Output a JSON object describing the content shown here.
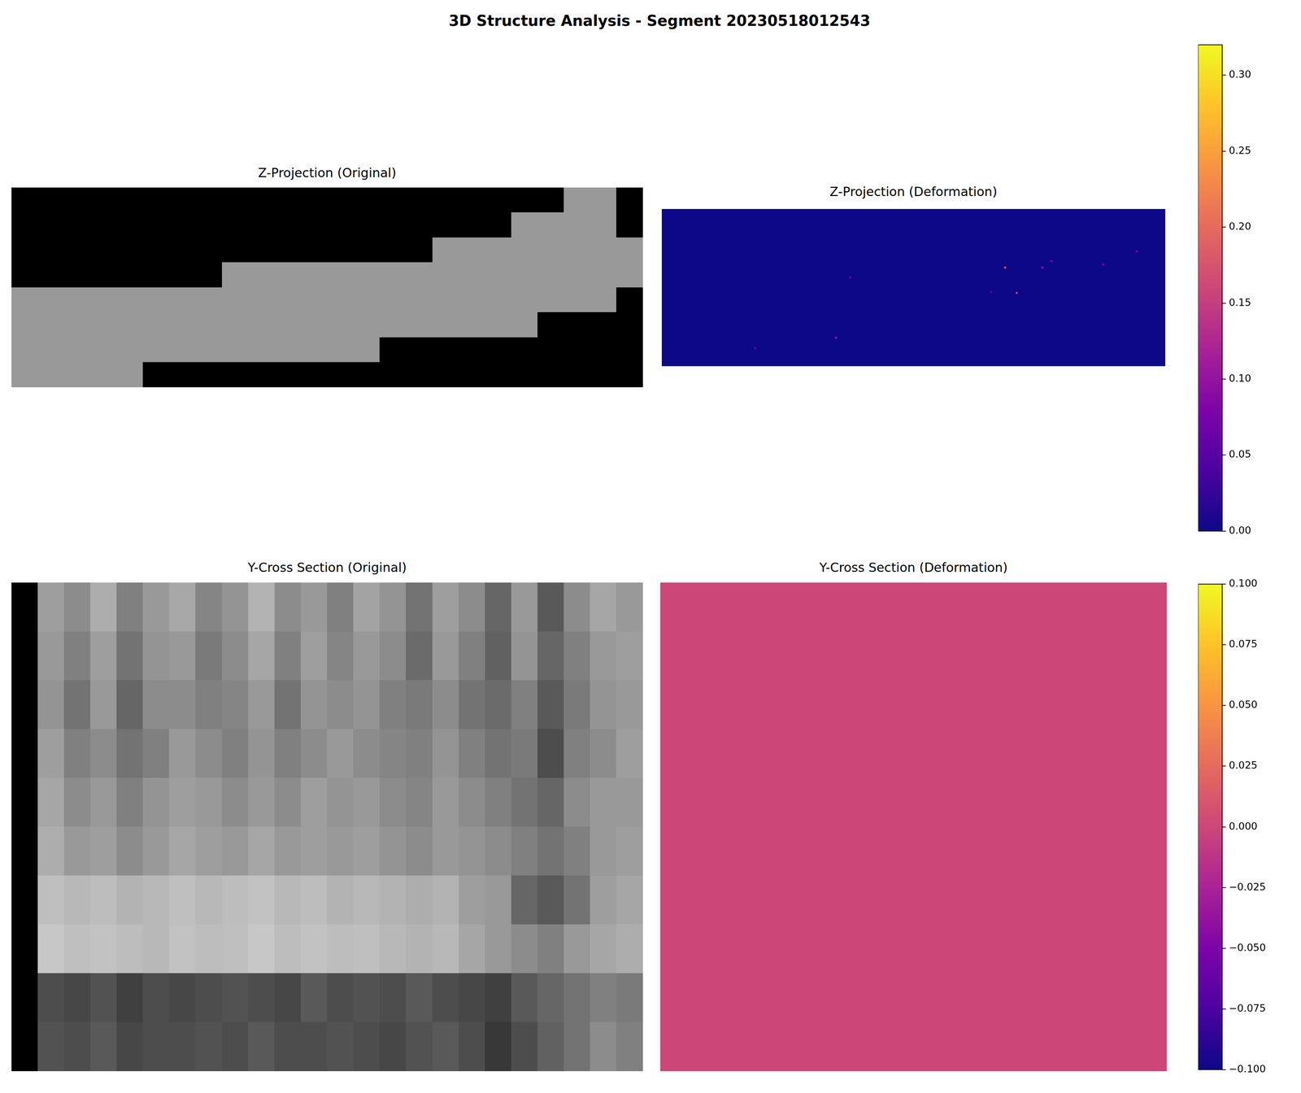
{
  "title": "3D Structure Analysis - Segment 20230518012543",
  "chart_data": [
    {
      "type": "heatmap",
      "title": "Z-Projection (Original)",
      "color": "gray",
      "tick_labels": false,
      "cells": [
        [
          0,
          0,
          0,
          0,
          0,
          0,
          0,
          0,
          0,
          0,
          0,
          0,
          0,
          0,
          0,
          0,
          0,
          0,
          0,
          0,
          0,
          0.6,
          0.6,
          0
        ],
        [
          0,
          0,
          0,
          0,
          0,
          0,
          0,
          0,
          0,
          0,
          0,
          0,
          0,
          0,
          0,
          0,
          0,
          0,
          0,
          0.6,
          0.6,
          0.6,
          0.6,
          0
        ],
        [
          0,
          0,
          0,
          0,
          0,
          0,
          0,
          0,
          0,
          0,
          0,
          0,
          0,
          0,
          0,
          0,
          0.6,
          0.6,
          0.6,
          0.6,
          0.6,
          0.6,
          0.6,
          0.6
        ],
        [
          0,
          0,
          0,
          0,
          0,
          0,
          0,
          0,
          0.6,
          0.6,
          0.6,
          0.6,
          0.6,
          0.6,
          0.6,
          0.6,
          0.6,
          0.6,
          0.6,
          0.6,
          0.6,
          0.6,
          0.6,
          0.6
        ],
        [
          0.6,
          0.6,
          0.6,
          0.6,
          0.6,
          0.6,
          0.6,
          0.6,
          0.6,
          0.6,
          0.6,
          0.6,
          0.6,
          0.6,
          0.6,
          0.6,
          0.6,
          0.6,
          0.6,
          0.6,
          0.6,
          0.6,
          0.6,
          0
        ],
        [
          0.6,
          0.6,
          0.6,
          0.6,
          0.6,
          0.6,
          0.6,
          0.6,
          0.6,
          0.6,
          0.6,
          0.6,
          0.6,
          0.6,
          0.6,
          0.6,
          0.6,
          0.6,
          0.6,
          0.6,
          0,
          0,
          0,
          0
        ],
        [
          0.6,
          0.6,
          0.6,
          0.6,
          0.6,
          0.6,
          0.6,
          0.6,
          0.6,
          0.6,
          0.6,
          0.6,
          0.6,
          0.6,
          0,
          0,
          0,
          0,
          0,
          0,
          0,
          0,
          0,
          0
        ],
        [
          0.6,
          0.6,
          0.6,
          0.6,
          0.6,
          0,
          0,
          0,
          0,
          0,
          0,
          0,
          0,
          0,
          0,
          0,
          0,
          0,
          0,
          0,
          0,
          0,
          0,
          0
        ]
      ]
    },
    {
      "type": "heatmap",
      "title": "Z-Projection (Deformation)",
      "color": "plasma",
      "tick_labels": false,
      "cells": [
        [
          0
        ]
      ],
      "points": [
        {
          "x": 0.682,
          "y": 0.373,
          "value": 0.17
        },
        {
          "x": 0.705,
          "y": 0.534,
          "value": 0.15
        },
        {
          "x": 0.756,
          "y": 0.373,
          "value": 0.1
        },
        {
          "x": 0.774,
          "y": 0.332,
          "value": 0.08
        },
        {
          "x": 0.877,
          "y": 0.352,
          "value": 0.08
        },
        {
          "x": 0.943,
          "y": 0.269,
          "value": 0.08
        },
        {
          "x": 0.654,
          "y": 0.528,
          "value": 0.06
        },
        {
          "x": 0.374,
          "y": 0.435,
          "value": 0.06
        },
        {
          "x": 0.346,
          "y": 0.819,
          "value": 0.1
        },
        {
          "x": 0.185,
          "y": 0.886,
          "value": 0.06
        }
      ],
      "colorbar": {
        "range": [
          0,
          0.32
        ],
        "ticks": [
          {
            "value": 0,
            "label": "0.00"
          },
          {
            "value": 0.05,
            "label": "0.05"
          },
          {
            "value": 0.1,
            "label": "0.10"
          },
          {
            "value": 0.15,
            "label": "0.15"
          },
          {
            "value": 0.2,
            "label": "0.20"
          },
          {
            "value": 0.25,
            "label": "0.25"
          },
          {
            "value": 0.3,
            "label": "0.30"
          }
        ]
      }
    },
    {
      "type": "heatmap",
      "title": "Y-Cross Section (Original)",
      "color": "gray",
      "tick_labels": false,
      "cells": [
        [
          0,
          0.62,
          0.55,
          0.68,
          0.5,
          0.6,
          0.66,
          0.52,
          0.58,
          0.7,
          0.55,
          0.6,
          0.5,
          0.64,
          0.58,
          0.45,
          0.62,
          0.55,
          0.4,
          0.6,
          0.35,
          0.55,
          0.65,
          0.6
        ],
        [
          0,
          0.6,
          0.5,
          0.62,
          0.45,
          0.58,
          0.6,
          0.48,
          0.55,
          0.65,
          0.5,
          0.62,
          0.52,
          0.6,
          0.55,
          0.42,
          0.6,
          0.5,
          0.38,
          0.58,
          0.4,
          0.5,
          0.6,
          0.62
        ],
        [
          0,
          0.58,
          0.45,
          0.6,
          0.4,
          0.55,
          0.55,
          0.5,
          0.52,
          0.6,
          0.45,
          0.58,
          0.55,
          0.58,
          0.5,
          0.48,
          0.55,
          0.45,
          0.42,
          0.5,
          0.35,
          0.48,
          0.58,
          0.6
        ],
        [
          0,
          0.62,
          0.5,
          0.55,
          0.45,
          0.5,
          0.6,
          0.55,
          0.5,
          0.58,
          0.5,
          0.55,
          0.6,
          0.55,
          0.52,
          0.5,
          0.58,
          0.5,
          0.45,
          0.48,
          0.3,
          0.5,
          0.55,
          0.62
        ],
        [
          0,
          0.65,
          0.55,
          0.6,
          0.5,
          0.58,
          0.62,
          0.6,
          0.55,
          0.6,
          0.55,
          0.62,
          0.58,
          0.6,
          0.55,
          0.52,
          0.6,
          0.55,
          0.5,
          0.45,
          0.4,
          0.55,
          0.6,
          0.6
        ],
        [
          0,
          0.68,
          0.6,
          0.62,
          0.55,
          0.6,
          0.65,
          0.62,
          0.6,
          0.65,
          0.6,
          0.62,
          0.6,
          0.62,
          0.58,
          0.55,
          0.6,
          0.58,
          0.55,
          0.5,
          0.45,
          0.5,
          0.6,
          0.62
        ],
        [
          0,
          0.75,
          0.72,
          0.74,
          0.7,
          0.72,
          0.75,
          0.72,
          0.74,
          0.76,
          0.72,
          0.74,
          0.7,
          0.72,
          0.7,
          0.68,
          0.7,
          0.62,
          0.6,
          0.4,
          0.35,
          0.45,
          0.62,
          0.65
        ],
        [
          0,
          0.78,
          0.75,
          0.76,
          0.74,
          0.72,
          0.76,
          0.74,
          0.75,
          0.78,
          0.74,
          0.76,
          0.74,
          0.75,
          0.72,
          0.7,
          0.72,
          0.65,
          0.6,
          0.55,
          0.5,
          0.6,
          0.65,
          0.68
        ],
        [
          0,
          0.3,
          0.28,
          0.32,
          0.25,
          0.3,
          0.28,
          0.3,
          0.32,
          0.3,
          0.28,
          0.35,
          0.3,
          0.32,
          0.3,
          0.35,
          0.3,
          0.28,
          0.25,
          0.35,
          0.4,
          0.45,
          0.5,
          0.48
        ],
        [
          0,
          0.32,
          0.3,
          0.35,
          0.28,
          0.3,
          0.3,
          0.32,
          0.3,
          0.35,
          0.3,
          0.3,
          0.32,
          0.3,
          0.28,
          0.32,
          0.35,
          0.3,
          0.22,
          0.3,
          0.38,
          0.45,
          0.55,
          0.5
        ]
      ]
    },
    {
      "type": "heatmap",
      "title": "Y-Cross Section (Deformation)",
      "color": "plasma",
      "tick_labels": false,
      "cells": [
        [
          0
        ]
      ],
      "colorbar": {
        "range": [
          -0.1,
          0.1
        ],
        "ticks": [
          {
            "value": -0.1,
            "label": "−0.100"
          },
          {
            "value": -0.075,
            "label": "−0.075"
          },
          {
            "value": -0.05,
            "label": "−0.050"
          },
          {
            "value": -0.025,
            "label": "−0.025"
          },
          {
            "value": 0,
            "label": "0.000"
          },
          {
            "value": 0.025,
            "label": "0.025"
          },
          {
            "value": 0.05,
            "label": "0.050"
          },
          {
            "value": 0.075,
            "label": "0.075"
          },
          {
            "value": 0.1,
            "label": "0.100"
          }
        ]
      }
    }
  ]
}
